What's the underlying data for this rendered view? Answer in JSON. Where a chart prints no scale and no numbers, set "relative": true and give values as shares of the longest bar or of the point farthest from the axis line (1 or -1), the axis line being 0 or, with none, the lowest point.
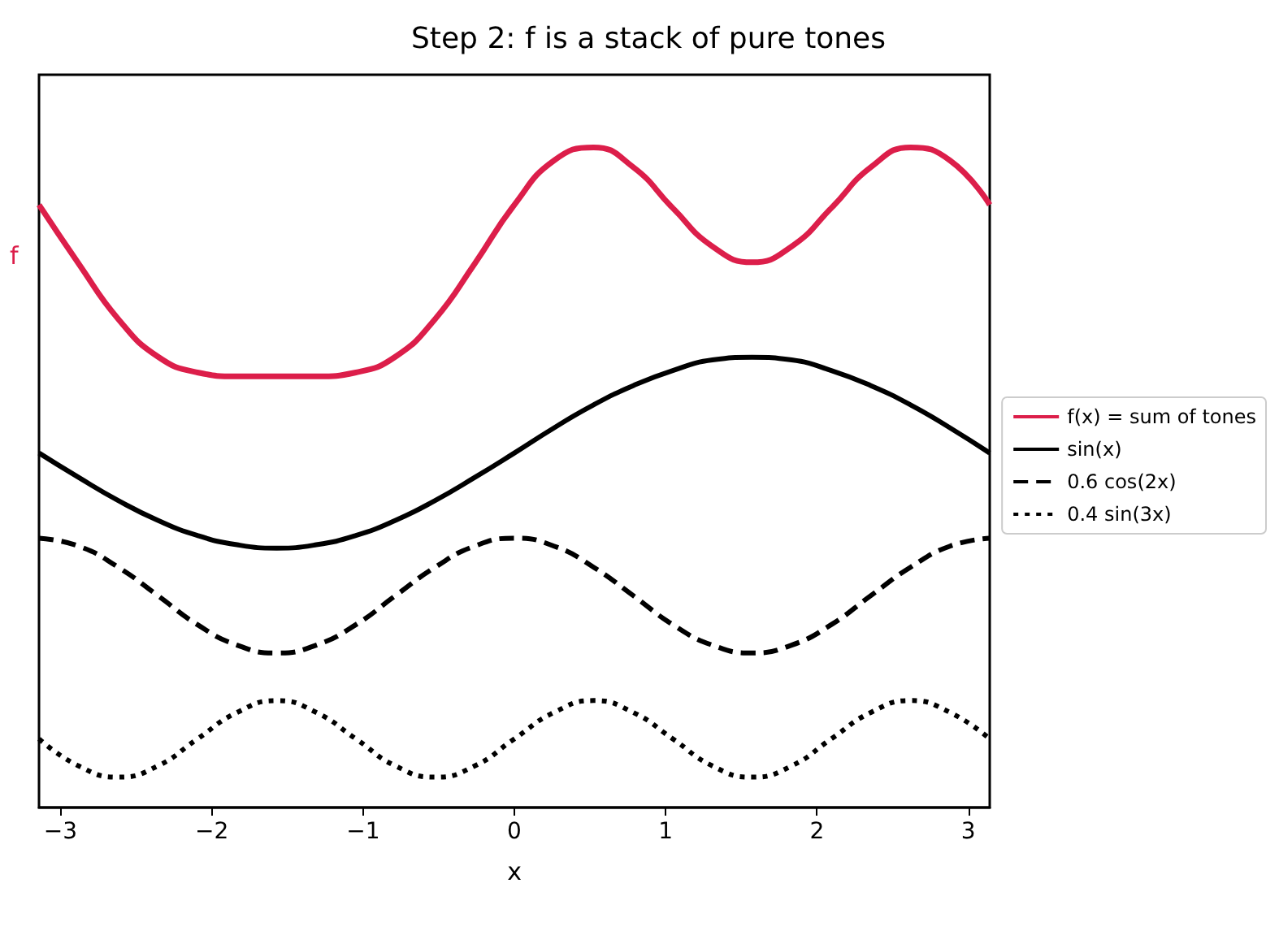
{
  "chart_data": {
    "type": "line",
    "title": "Step 2: f is a stack of pure tones",
    "xlabel": "x",
    "relative": true,
    "tick_labels": "x",
    "grid": false,
    "legend": "right",
    "marker": "none",
    "x": [
      -3.1416,
      -2.8798,
      -2.618,
      -2.3562,
      -2.0944,
      -1.8326,
      -1.5708,
      -1.309,
      -1.0472,
      -0.7854,
      -0.5236,
      -0.2618,
      0,
      0.2618,
      0.5236,
      0.7854,
      1.0472,
      1.309,
      1.5708,
      1.8326,
      2.0944,
      2.3562,
      2.618,
      2.8798,
      3.1416
    ],
    "xlim": [
      -3.1416,
      3.1416
    ],
    "xticks": [
      {
        "value": -3,
        "label": "−3"
      },
      {
        "value": -2,
        "label": "−2"
      },
      {
        "value": -1,
        "label": "−1"
      },
      0,
      1,
      2,
      3
    ],
    "annotations": [
      "f"
    ],
    "series": [
      {
        "name": "f(x) = sum of tones",
        "color": "#dc1e4a",
        "line_style": "solid",
        "values": [
          0.913,
          0.824,
          0.74,
          0.683,
          0.659,
          0.653,
          0.653,
          0.653,
          0.659,
          0.683,
          0.74,
          0.824,
          0.913,
          0.98,
          1,
          0.97,
          0.908,
          0.85,
          0.826,
          0.85,
          0.908,
          0.97,
          1,
          0.98,
          0.913
        ]
      },
      {
        "name": "sin(x)",
        "color": "#000000",
        "line_style": "solid",
        "values": [
          0.537,
          0.5,
          0.465,
          0.435,
          0.412,
          0.398,
          0.393,
          0.398,
          0.412,
          0.435,
          0.465,
          0.5,
          0.537,
          0.575,
          0.61,
          0.639,
          0.662,
          0.678,
          0.682,
          0.678,
          0.662,
          0.639,
          0.61,
          0.575,
          0.537
        ]
      },
      {
        "name": "0.6 cos(2x)",
        "color": "#000000",
        "line_style": "dashed",
        "values": [
          0.408,
          0.396,
          0.364,
          0.321,
          0.277,
          0.246,
          0.234,
          0.246,
          0.277,
          0.321,
          0.364,
          0.396,
          0.408,
          0.396,
          0.364,
          0.321,
          0.277,
          0.246,
          0.234,
          0.246,
          0.277,
          0.321,
          0.364,
          0.396,
          0.408
        ]
      },
      {
        "name": "0.4 sin(3x)",
        "color": "#000000",
        "line_style": "dotted",
        "values": [
          0.104,
          0.063,
          0.046,
          0.063,
          0.104,
          0.144,
          0.162,
          0.144,
          0.104,
          0.063,
          0.046,
          0.063,
          0.104,
          0.144,
          0.162,
          0.144,
          0.104,
          0.063,
          0.046,
          0.063,
          0.104,
          0.144,
          0.162,
          0.144,
          0.104
        ]
      }
    ]
  }
}
